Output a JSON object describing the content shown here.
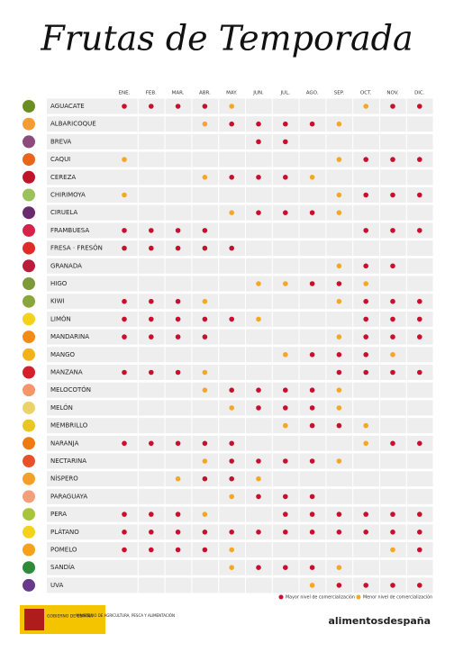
{
  "title": "Frutas de Temporada",
  "months": [
    "ENE.",
    "FEB.",
    "MAR.",
    "ABR.",
    "MAY.",
    "JUN.",
    "JUL.",
    "AGO.",
    "SEP.",
    "OCT.",
    "NOV.",
    "DIC."
  ],
  "legend": [
    {
      "label": "Mayor nivel de comercialización",
      "color": "#c8102e"
    },
    {
      "label": "Menor nivel de comercialización",
      "color": "#f5a623"
    }
  ],
  "fruits": [
    {
      "name": "AGUACATE",
      "icon": "#6b8e23",
      "cells": [
        0,
        0,
        0,
        0,
        1,
        null,
        null,
        null,
        null,
        1,
        0,
        0
      ]
    },
    {
      "name": "ALBARICOQUE",
      "icon": "#f39c32",
      "cells": [
        null,
        null,
        null,
        1,
        0,
        0,
        0,
        0,
        1,
        null,
        null,
        null
      ]
    },
    {
      "name": "BREVA",
      "icon": "#8e4a7a",
      "cells": [
        null,
        null,
        null,
        null,
        null,
        0,
        0,
        null,
        null,
        null,
        null,
        null
      ]
    },
    {
      "name": "CAQUI",
      "icon": "#e8651a",
      "cells": [
        1,
        null,
        null,
        null,
        null,
        null,
        null,
        null,
        1,
        0,
        0,
        0
      ]
    },
    {
      "name": "CEREZA",
      "icon": "#c0142a",
      "cells": [
        null,
        null,
        null,
        1,
        0,
        0,
        0,
        1,
        null,
        null,
        null,
        null
      ]
    },
    {
      "name": "CHIRIMOYA",
      "icon": "#9bc25a",
      "cells": [
        1,
        null,
        null,
        null,
        null,
        null,
        null,
        null,
        1,
        0,
        0,
        0
      ]
    },
    {
      "name": "CIRUELA",
      "icon": "#6a2a6e",
      "cells": [
        null,
        null,
        null,
        null,
        1,
        0,
        0,
        0,
        1,
        null,
        null,
        null
      ]
    },
    {
      "name": "FRAMBUESA",
      "icon": "#d6234a",
      "cells": [
        0,
        0,
        0,
        0,
        null,
        null,
        null,
        null,
        null,
        0,
        0,
        0
      ]
    },
    {
      "name": "FRESA · FRESÓN",
      "icon": "#e02b2b",
      "cells": [
        0,
        0,
        0,
        0,
        0,
        null,
        null,
        null,
        null,
        null,
        null,
        null
      ]
    },
    {
      "name": "GRANADA",
      "icon": "#b81d3c",
      "cells": [
        null,
        null,
        null,
        null,
        null,
        null,
        null,
        null,
        1,
        0,
        0,
        null
      ]
    },
    {
      "name": "HIGO",
      "icon": "#7d9a3a",
      "cells": [
        null,
        null,
        null,
        null,
        null,
        1,
        1,
        0,
        0,
        1,
        null,
        null
      ]
    },
    {
      "name": "KIWI",
      "icon": "#8aa53b",
      "cells": [
        0,
        0,
        0,
        1,
        null,
        null,
        null,
        null,
        1,
        0,
        0,
        0
      ]
    },
    {
      "name": "LIMÓN",
      "icon": "#f2d21b",
      "cells": [
        0,
        0,
        0,
        0,
        0,
        1,
        null,
        null,
        null,
        0,
        0,
        0
      ]
    },
    {
      "name": "MANDARINA",
      "icon": "#f28a16",
      "cells": [
        0,
        0,
        0,
        0,
        null,
        null,
        null,
        null,
        1,
        0,
        0,
        0
      ]
    },
    {
      "name": "MANGO",
      "icon": "#f2b31a",
      "cells": [
        null,
        null,
        null,
        null,
        null,
        null,
        1,
        0,
        0,
        0,
        1,
        null
      ]
    },
    {
      "name": "MANZANA",
      "icon": "#d4202a",
      "cells": [
        0,
        0,
        0,
        1,
        null,
        null,
        null,
        null,
        0,
        0,
        0,
        0
      ]
    },
    {
      "name": "MELOCOTÓN",
      "icon": "#f4956a",
      "cells": [
        null,
        null,
        null,
        1,
        0,
        0,
        0,
        0,
        1,
        null,
        null,
        null
      ]
    },
    {
      "name": "MELÓN",
      "icon": "#e9d36a",
      "cells": [
        null,
        null,
        null,
        null,
        1,
        0,
        0,
        0,
        1,
        null,
        null,
        null
      ]
    },
    {
      "name": "MEMBRILLO",
      "icon": "#e8c71e",
      "cells": [
        null,
        null,
        null,
        null,
        null,
        null,
        1,
        0,
        0,
        1,
        null,
        null
      ]
    },
    {
      "name": "NARANJA",
      "icon": "#f07a12",
      "cells": [
        0,
        0,
        0,
        0,
        0,
        null,
        null,
        null,
        null,
        1,
        0,
        0
      ]
    },
    {
      "name": "NECTARINA",
      "icon": "#e8502a",
      "cells": [
        null,
        null,
        null,
        1,
        0,
        0,
        0,
        0,
        1,
        null,
        null,
        null
      ]
    },
    {
      "name": "NÍSPERO",
      "icon": "#f3a02a",
      "cells": [
        null,
        null,
        1,
        0,
        0,
        1,
        null,
        null,
        null,
        null,
        null,
        null
      ]
    },
    {
      "name": "PARAGUAYA",
      "icon": "#f2a07a",
      "cells": [
        null,
        null,
        null,
        null,
        1,
        0,
        0,
        0,
        null,
        null,
        null,
        null
      ]
    },
    {
      "name": "PERA",
      "icon": "#a8c43a",
      "cells": [
        0,
        0,
        0,
        1,
        null,
        null,
        0,
        0,
        0,
        0,
        0,
        0
      ]
    },
    {
      "name": "PLÁTANO",
      "icon": "#f4d21a",
      "cells": [
        0,
        0,
        0,
        0,
        0,
        0,
        0,
        0,
        0,
        0,
        0,
        0
      ]
    },
    {
      "name": "POMELO",
      "icon": "#f5a21a",
      "cells": [
        0,
        0,
        0,
        0,
        1,
        null,
        null,
        null,
        null,
        null,
        1,
        0
      ]
    },
    {
      "name": "SANDÍA",
      "icon": "#2e8b3a",
      "cells": [
        null,
        null,
        null,
        null,
        1,
        0,
        0,
        0,
        1,
        null,
        null,
        null
      ]
    },
    {
      "name": "UVA",
      "icon": "#6a3a8a",
      "cells": [
        null,
        null,
        null,
        null,
        null,
        null,
        null,
        1,
        0,
        0,
        0,
        0
      ]
    }
  ],
  "footer": {
    "gov": "GOBIERNO DE ESPAÑA",
    "ministry": "MINISTERIO DE AGRICULTURA, PESCA Y ALIMENTACIÓN",
    "brand": "alimentosdespaña"
  }
}
